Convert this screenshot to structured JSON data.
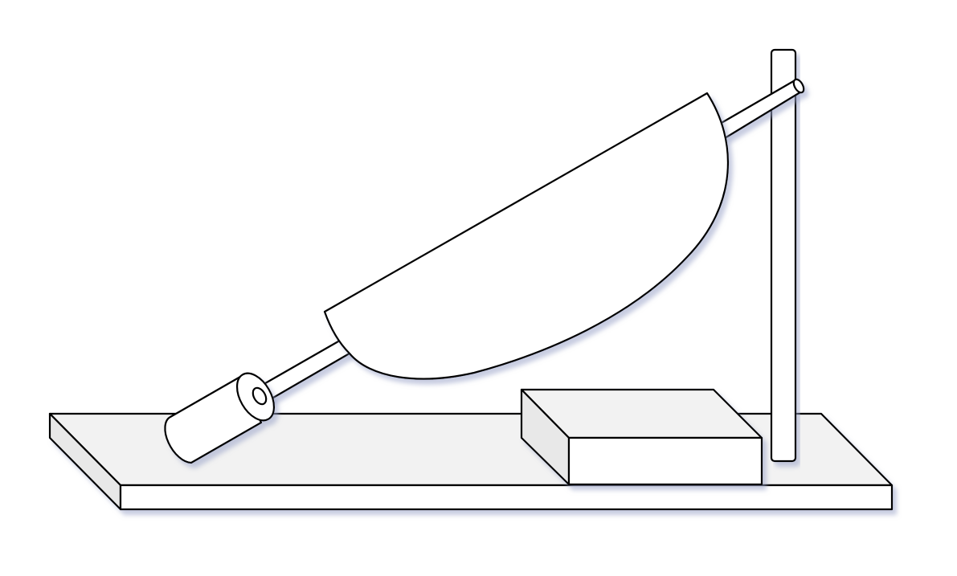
{
  "diagram": {
    "subject": "inclined-shaft-with-half-disc-apparatus",
    "colors": {
      "background": "#ffffff",
      "stroke": "#000000",
      "top_face": "#f2f2f2",
      "front_face": "#ffffff",
      "side_face": "#e8e8e8",
      "shadow": "#9aa3c8"
    },
    "parts": [
      "base-board",
      "wooden-block",
      "vertical-post",
      "inclined-shaft",
      "cylindrical-weight",
      "half-disc"
    ]
  }
}
